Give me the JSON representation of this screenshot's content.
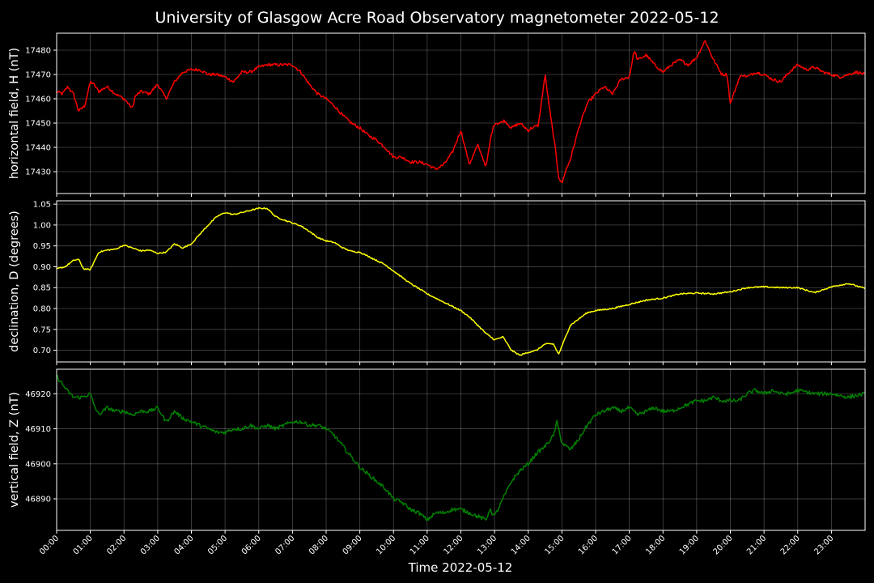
{
  "chart_data": {
    "type": "line",
    "title": "University of Glasgow Acre Road Observatory magnetometer 2022-05-12",
    "xlabel": "Time 2022-05-12",
    "x_ticks": [
      "00:00",
      "01:00",
      "02:00",
      "03:00",
      "04:00",
      "05:00",
      "06:00",
      "07:00",
      "08:00",
      "09:00",
      "10:00",
      "11:00",
      "12:00",
      "13:00",
      "14:00",
      "15:00",
      "16:00",
      "17:00",
      "18:00",
      "19:00",
      "20:00",
      "21:00",
      "22:00",
      "23:00"
    ],
    "xlim_hours": [
      0,
      24
    ],
    "grid": true,
    "background": "#000000",
    "panels": [
      {
        "ylabel": "horizontal field, H (nT)",
        "color": "#ff0000",
        "ylim": [
          17421,
          17487
        ],
        "yticks": [
          17430,
          17440,
          17450,
          17460,
          17470,
          17480
        ],
        "x": [
          0,
          0.17,
          0.33,
          0.5,
          0.65,
          0.83,
          1,
          1.1,
          1.25,
          1.5,
          1.75,
          2,
          2.25,
          2.33,
          2.5,
          2.75,
          3,
          3.25,
          3.5,
          3.75,
          4,
          4.25,
          4.5,
          4.75,
          5,
          5.25,
          5.5,
          5.75,
          6,
          6.25,
          6.5,
          6.75,
          7,
          7.25,
          7.5,
          7.75,
          8,
          8.25,
          8.5,
          8.75,
          9,
          9.25,
          9.5,
          9.75,
          10,
          10.25,
          10.5,
          10.75,
          11,
          11.25,
          11.5,
          11.75,
          12,
          12.25,
          12.5,
          12.75,
          12.9,
          13,
          13.15,
          13.3,
          13.5,
          13.75,
          14,
          14.1,
          14.3,
          14.5,
          14.65,
          14.8,
          14.9,
          15,
          15.1,
          15.25,
          15.5,
          15.75,
          16,
          16.25,
          16.5,
          16.75,
          17,
          17.15,
          17.25,
          17.5,
          17.75,
          18,
          18.25,
          18.5,
          18.75,
          19,
          19.25,
          19.5,
          19.75,
          19.9,
          20,
          20.25,
          20.35,
          20.5,
          20.75,
          21,
          21.25,
          21.5,
          21.75,
          22,
          22.25,
          22.5,
          22.75,
          23,
          23.25,
          23.5,
          23.75,
          24
        ],
        "y": [
          17463,
          17462,
          17465,
          17462,
          17455,
          17457,
          17467,
          17466,
          17463,
          17465,
          17462,
          17460,
          17456,
          17461,
          17463,
          17462,
          17466,
          17460,
          17467,
          17471,
          17472,
          17472,
          17470,
          17470,
          17469,
          17467,
          17471,
          17471,
          17473,
          17474,
          17474,
          17474,
          17474,
          17471,
          17466,
          17462,
          17460,
          17457,
          17453,
          17450,
          17448,
          17445,
          17443,
          17440,
          17436,
          17436,
          17434,
          17434,
          17433,
          17431,
          17433,
          17438,
          17447,
          17433,
          17441,
          17432,
          17445,
          17450,
          17450,
          17451,
          17448,
          17450,
          17447,
          17448,
          17449,
          17470,
          17454,
          17440,
          17428,
          17425,
          17430,
          17435,
          17448,
          17458,
          17462,
          17465,
          17462,
          17468,
          17469,
          17480,
          17476,
          17478,
          17474,
          17471,
          17474,
          17476,
          17474,
          17477,
          17484,
          17476,
          17470,
          17470,
          17458,
          17468,
          17470,
          17469,
          17471,
          17470,
          17468,
          17467,
          17471,
          17474,
          17472,
          17473,
          17471,
          17470,
          17469,
          17470,
          17471,
          17470
        ],
        "noise": 0.6
      },
      {
        "ylabel": "declination, D (degrees)",
        "color": "#ffff00",
        "ylim": [
          0.672,
          1.058
        ],
        "yticks": [
          0.7,
          0.75,
          0.8,
          0.85,
          0.9,
          0.95,
          1.0,
          1.05
        ],
        "x": [
          0,
          0.25,
          0.5,
          0.65,
          0.8,
          1,
          1.25,
          1.5,
          1.75,
          2,
          2.25,
          2.5,
          2.75,
          3,
          3.25,
          3.5,
          3.75,
          4,
          4.25,
          4.5,
          4.75,
          5,
          5.25,
          5.5,
          5.75,
          6,
          6.25,
          6.5,
          6.75,
          7,
          7.25,
          7.5,
          7.75,
          8,
          8.25,
          8.5,
          8.75,
          9,
          9.25,
          9.5,
          9.75,
          10,
          10.25,
          10.5,
          10.75,
          11,
          11.25,
          11.5,
          11.75,
          12,
          12.25,
          12.5,
          12.75,
          13,
          13.25,
          13.5,
          13.75,
          14,
          14.25,
          14.5,
          14.75,
          14.9,
          15,
          15.25,
          15.5,
          15.75,
          16,
          16.5,
          17,
          17.5,
          18,
          18.5,
          19,
          19.5,
          20,
          20.5,
          21,
          21.5,
          22,
          22.5,
          23,
          23.5,
          24
        ],
        "y": [
          0.895,
          0.9,
          0.915,
          0.918,
          0.895,
          0.893,
          0.935,
          0.94,
          0.942,
          0.952,
          0.945,
          0.938,
          0.94,
          0.932,
          0.935,
          0.955,
          0.945,
          0.955,
          0.978,
          1.0,
          1.02,
          1.03,
          1.025,
          1.03,
          1.035,
          1.04,
          1.04,
          1.02,
          1.012,
          1.005,
          0.998,
          0.985,
          0.97,
          0.962,
          0.958,
          0.945,
          0.937,
          0.935,
          0.925,
          0.915,
          0.905,
          0.89,
          0.875,
          0.86,
          0.848,
          0.835,
          0.825,
          0.815,
          0.805,
          0.795,
          0.78,
          0.76,
          0.74,
          0.725,
          0.732,
          0.7,
          0.688,
          0.695,
          0.7,
          0.715,
          0.715,
          0.69,
          0.71,
          0.76,
          0.775,
          0.79,
          0.795,
          0.8,
          0.81,
          0.82,
          0.825,
          0.835,
          0.837,
          0.835,
          0.84,
          0.85,
          0.852,
          0.85,
          0.85,
          0.838,
          0.852,
          0.86,
          0.848
        ],
        "noise": 0.0015
      },
      {
        "ylabel": "vertical field, Z (nT)",
        "color": "#008000",
        "ylim": [
          46881,
          46927
        ],
        "yticks": [
          46890,
          46900,
          46910,
          46920
        ],
        "x": [
          0,
          0.15,
          0.3,
          0.5,
          0.75,
          1,
          1.1,
          1.25,
          1.5,
          1.75,
          2,
          2.25,
          2.5,
          2.75,
          3,
          3.25,
          3.5,
          3.75,
          4,
          4.25,
          4.5,
          4.75,
          5,
          5.25,
          5.5,
          5.75,
          6,
          6.25,
          6.5,
          6.75,
          7,
          7.25,
          7.5,
          7.75,
          8,
          8.25,
          8.5,
          8.75,
          9,
          9.25,
          9.5,
          9.75,
          10,
          10.25,
          10.5,
          10.75,
          11,
          11.25,
          11.5,
          11.75,
          12,
          12.25,
          12.5,
          12.75,
          12.85,
          13,
          13.25,
          13.5,
          13.75,
          14,
          14.25,
          14.5,
          14.75,
          14.85,
          15,
          15.25,
          15.5,
          15.75,
          16,
          16.25,
          16.5,
          16.75,
          17,
          17.25,
          17.5,
          17.75,
          18,
          18.25,
          18.5,
          18.75,
          19,
          19.25,
          19.5,
          19.75,
          20,
          20.25,
          20.5,
          20.75,
          21,
          21.25,
          21.5,
          21.75,
          22,
          22.5,
          23,
          23.5,
          24
        ],
        "y": [
          46925,
          46923,
          46921,
          46919,
          46919,
          46920,
          46917,
          46914,
          46916,
          46915,
          46915,
          46914,
          46915,
          46915,
          46916,
          46912,
          46915,
          46913,
          46912,
          46911,
          46910,
          46909,
          46909,
          46910,
          46910,
          46911,
          46910,
          46911,
          46910,
          46911,
          46912,
          46912,
          46911,
          46911,
          46910,
          46908,
          46905,
          46902,
          46899,
          46897,
          46895,
          46893,
          46890,
          46889,
          46887,
          46886,
          46884,
          46886,
          46886,
          46887,
          46887,
          46886,
          46885,
          46884,
          46887,
          46885,
          46890,
          46895,
          46898,
          46900,
          46903,
          46905,
          46908,
          46912,
          46906,
          46904,
          46907,
          46911,
          46914,
          46915,
          46916,
          46915,
          46916,
          46914,
          46915,
          46916,
          46915,
          46915,
          46916,
          46917,
          46918,
          46918,
          46919,
          46918,
          46918,
          46918,
          46920,
          46921,
          46920,
          46921,
          46920,
          46920,
          46921,
          46920,
          46920,
          46919,
          46920
        ],
        "noise": 0.55
      }
    ]
  }
}
